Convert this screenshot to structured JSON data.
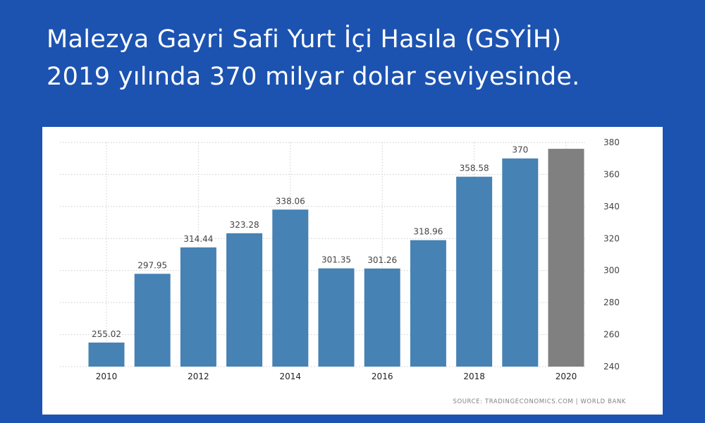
{
  "headline": {
    "line1": "Malezya Gayri Safi Yurt İçi Hasıla (GSYİH)",
    "line2": "2019 yılında 370 milyar dolar seviyesinde."
  },
  "source_text": "SOURCE: TRADINGECONOMICS.COM  |  WORLD BANK",
  "chart_data": {
    "type": "bar",
    "categories": [
      "2010",
      "2011",
      "2012",
      "2013",
      "2014",
      "2015",
      "2016",
      "2017",
      "2018",
      "2019",
      "2020"
    ],
    "values": [
      255.02,
      297.95,
      314.44,
      323.28,
      338.06,
      301.35,
      301.26,
      318.96,
      358.58,
      370,
      376
    ],
    "data_labels": [
      "255.02",
      "297.95",
      "314.44",
      "323.28",
      "338.06",
      "301.35",
      "301.26",
      "318.96",
      "358.58",
      "370",
      ""
    ],
    "x_tick_labels": [
      "2010",
      "",
      "2012",
      "",
      "2014",
      "",
      "2016",
      "",
      "2018",
      "",
      "2020"
    ],
    "y_ticks": [
      240,
      260,
      280,
      300,
      320,
      340,
      360,
      380
    ],
    "ylim": [
      240,
      380
    ],
    "y_axis_position": "right",
    "grid": true,
    "colors": {
      "bar": "#4682b4",
      "forecast_bar": "#808080",
      "grid": "#cccccc",
      "text": "#444444"
    }
  }
}
